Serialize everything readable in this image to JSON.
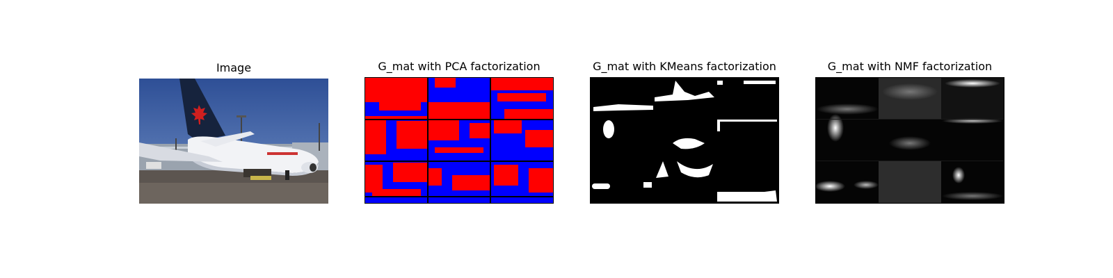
{
  "panels": [
    {
      "title": "Image",
      "kind": "photo"
    },
    {
      "title": "G_mat with PCA factorization",
      "kind": "pca",
      "colors": [
        "#ff0000",
        "#0000ff",
        "#000000"
      ]
    },
    {
      "title": "G_mat with KMeans factorization",
      "kind": "kmeans",
      "colors": [
        "#000000",
        "#ffffff"
      ]
    },
    {
      "title": "G_mat with NMF factorization",
      "kind": "nmf",
      "colors": [
        "#000000",
        "#ffffff"
      ]
    }
  ]
}
